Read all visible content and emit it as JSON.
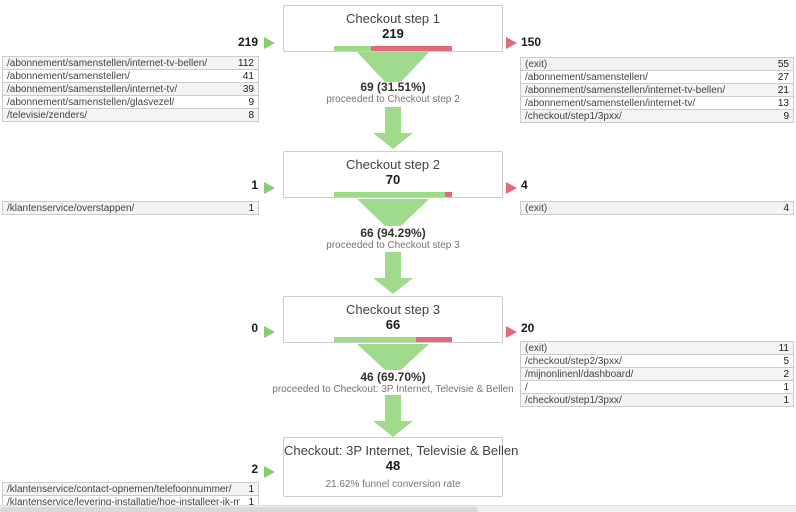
{
  "colors": {
    "bar_green": "#9adb84",
    "bar_red": "#e06a79",
    "funnel_green": "#a0da8c",
    "entry_arrow_green": "#85cf72",
    "exit_arrow_red": "#e06a79"
  },
  "chart_data": {
    "type": "funnel",
    "steps": [
      {
        "title": "Checkout step 1",
        "value": "219",
        "bar_green_pct": 31.51,
        "entry_total": "219",
        "exit_total": "150",
        "entry_rows": [
          {
            "path": "/abonnement/samenstellen/internet-tv-bellen/",
            "value": "112"
          },
          {
            "path": "/abonnement/samenstellen/",
            "value": "41"
          },
          {
            "path": "/abonnement/samenstellen/internet-tv/",
            "value": "39"
          },
          {
            "path": "/abonnement/samenstellen/glasvezel/",
            "value": "9"
          },
          {
            "path": "/televisie/zenders/",
            "value": "8"
          }
        ],
        "exit_rows": [
          {
            "path": "(exit)",
            "value": "55"
          },
          {
            "path": "/abonnement/samenstellen/",
            "value": "27"
          },
          {
            "path": "/abonnement/samenstellen/internet-tv-bellen/",
            "value": "21"
          },
          {
            "path": "/abonnement/samenstellen/internet-tv/",
            "value": "13"
          },
          {
            "path": "/checkout/step1/3pxx/",
            "value": "9"
          }
        ],
        "transition_value": "69 (31.51%)",
        "transition_label": "proceeded to Checkout step 2"
      },
      {
        "title": "Checkout step 2",
        "value": "70",
        "bar_green_pct": 94.29,
        "entry_total": "1",
        "exit_total": "4",
        "entry_rows": [
          {
            "path": "/klantenservice/overstappen/",
            "value": "1"
          }
        ],
        "exit_rows": [
          {
            "path": "(exit)",
            "value": "4"
          }
        ],
        "transition_value": "66 (94.29%)",
        "transition_label": "proceeded to Checkout step 3"
      },
      {
        "title": "Checkout step 3",
        "value": "66",
        "bar_green_pct": 69.7,
        "entry_total": "0",
        "exit_total": "20",
        "entry_rows": [],
        "exit_rows": [
          {
            "path": "(exit)",
            "value": "11"
          },
          {
            "path": "/checkout/step2/3pxx/",
            "value": "5"
          },
          {
            "path": "/mijnonlinenl/dashboard/",
            "value": "2"
          },
          {
            "path": "/",
            "value": "1"
          },
          {
            "path": "/checkout/step1/3pxx/",
            "value": "1"
          }
        ],
        "transition_value": "46 (69.70%)",
        "transition_label": "proceeded to Checkout: 3P Internet, Televisie & Bellen"
      },
      {
        "title": "Checkout: 3P Internet, Televisie & Bellen",
        "value": "48",
        "conversion_note": "21.62% funnel conversion rate",
        "entry_total": "2",
        "entry_rows": [
          {
            "path": "/klantenservice/contact-opnemen/telefoonnummer/",
            "value": "1"
          },
          {
            "path": "/klantenservice/levering-installatie/hoe-installeer-ik-mijn-dienst...",
            "value": "1"
          }
        ]
      }
    ]
  }
}
